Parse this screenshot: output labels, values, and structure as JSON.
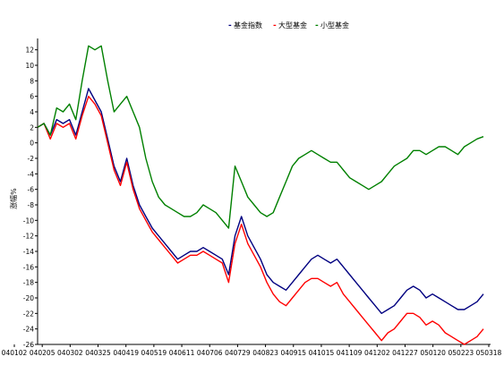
{
  "chart_data": {
    "type": "line",
    "title": "",
    "xlabel": "",
    "ylabel": "涨幅%",
    "ylim": [
      -26,
      13
    ],
    "yticks": [
      12,
      10,
      8,
      6,
      4,
      2,
      0,
      -2,
      -4,
      -6,
      -8,
      -10,
      -12,
      -14,
      -16,
      -18,
      -20,
      -22,
      -24,
      -26
    ],
    "x_tick_labels": [
      "040102",
      "040205",
      "040302",
      "040325",
      "040419",
      "040519",
      "040611",
      "040706",
      "040729",
      "040823",
      "040915",
      "041015",
      "041109",
      "041202",
      "041227",
      "050120",
      "050223",
      "050318"
    ],
    "grid": false,
    "legend_position": "top",
    "legend_marker": "-",
    "x": [
      0,
      1,
      2,
      3,
      4,
      5,
      6,
      7,
      8,
      9,
      10,
      11,
      12,
      13,
      14,
      15,
      16,
      17,
      18,
      19,
      20,
      21,
      22,
      23,
      24,
      25,
      26,
      27,
      28,
      29,
      30,
      31,
      32,
      33,
      34,
      35,
      36,
      37,
      38,
      39,
      40,
      41,
      42,
      43,
      44,
      45,
      46,
      47,
      48,
      49,
      50,
      51,
      52,
      53,
      54,
      55,
      56,
      57,
      58,
      59,
      60,
      61,
      62,
      63,
      64,
      65,
      66,
      67,
      68,
      69,
      70
    ],
    "series": [
      {
        "name": "基金指数",
        "color": "#000080",
        "values": [
          2.0,
          2.5,
          1.0,
          3.0,
          2.5,
          3.0,
          1.0,
          4.0,
          7.0,
          5.5,
          4.0,
          0.5,
          -3.0,
          -5.0,
          -2.0,
          -5.5,
          -8.0,
          -9.5,
          -11.0,
          -12.0,
          -13.0,
          -14.0,
          -15.0,
          -14.5,
          -14.0,
          -14.0,
          -13.5,
          -14.0,
          -14.5,
          -15.0,
          -17.0,
          -12.0,
          -9.5,
          -12.0,
          -13.5,
          -15.0,
          -17.0,
          -18.0,
          -18.5,
          -19.0,
          -18.0,
          -17.0,
          -16.0,
          -15.0,
          -14.5,
          -15.0,
          -15.5,
          -15.0,
          -16.0,
          -17.0,
          -18.0,
          -19.0,
          -20.0,
          -21.0,
          -22.0,
          -21.5,
          -21.0,
          -20.0,
          -19.0,
          -18.5,
          -19.0,
          -20.0,
          -19.5,
          -20.0,
          -20.5,
          -21.0,
          -21.5,
          -21.5,
          -21.0,
          -20.5,
          -19.5
        ]
      },
      {
        "name": "大型基金",
        "color": "#ff0000",
        "values": [
          2.0,
          2.5,
          0.5,
          2.5,
          2.0,
          2.5,
          0.5,
          3.5,
          6.0,
          5.0,
          3.5,
          0.0,
          -3.5,
          -5.5,
          -2.5,
          -6.0,
          -8.5,
          -10.0,
          -11.5,
          -12.5,
          -13.5,
          -14.5,
          -15.5,
          -15.0,
          -14.5,
          -14.5,
          -14.0,
          -14.5,
          -15.0,
          -15.5,
          -18.0,
          -13.0,
          -10.5,
          -13.0,
          -14.5,
          -16.0,
          -18.0,
          -19.5,
          -20.5,
          -21.0,
          -20.0,
          -19.0,
          -18.0,
          -17.5,
          -17.5,
          -18.0,
          -18.5,
          -18.0,
          -19.5,
          -20.5,
          -21.5,
          -22.5,
          -23.5,
          -24.5,
          -25.5,
          -24.5,
          -24.0,
          -23.0,
          -22.0,
          -22.0,
          -22.5,
          -23.5,
          -23.0,
          -23.5,
          -24.5,
          -25.0,
          -25.5,
          -26.0,
          -25.5,
          -25.0,
          -24.0
        ]
      },
      {
        "name": "小型基金",
        "color": "#008000",
        "values": [
          2.0,
          2.5,
          1.0,
          4.5,
          4.0,
          5.0,
          3.0,
          8.0,
          12.5,
          12.0,
          12.5,
          8.0,
          4.0,
          5.0,
          6.0,
          4.0,
          2.0,
          -2.0,
          -5.0,
          -7.0,
          -8.0,
          -8.5,
          -9.0,
          -9.5,
          -9.5,
          -9.0,
          -8.0,
          -8.5,
          -9.0,
          -10.0,
          -11.0,
          -3.0,
          -5.0,
          -7.0,
          -8.0,
          -9.0,
          -9.5,
          -9.0,
          -7.0,
          -5.0,
          -3.0,
          -2.0,
          -1.5,
          -1.0,
          -1.5,
          -2.0,
          -2.5,
          -2.5,
          -3.5,
          -4.5,
          -5.0,
          -5.5,
          -6.0,
          -5.5,
          -5.0,
          -4.0,
          -3.0,
          -2.5,
          -2.0,
          -1.0,
          -1.0,
          -1.5,
          -1.0,
          -0.5,
          -0.5,
          -1.0,
          -1.5,
          -0.5,
          0.0,
          0.5,
          0.8
        ]
      }
    ]
  }
}
